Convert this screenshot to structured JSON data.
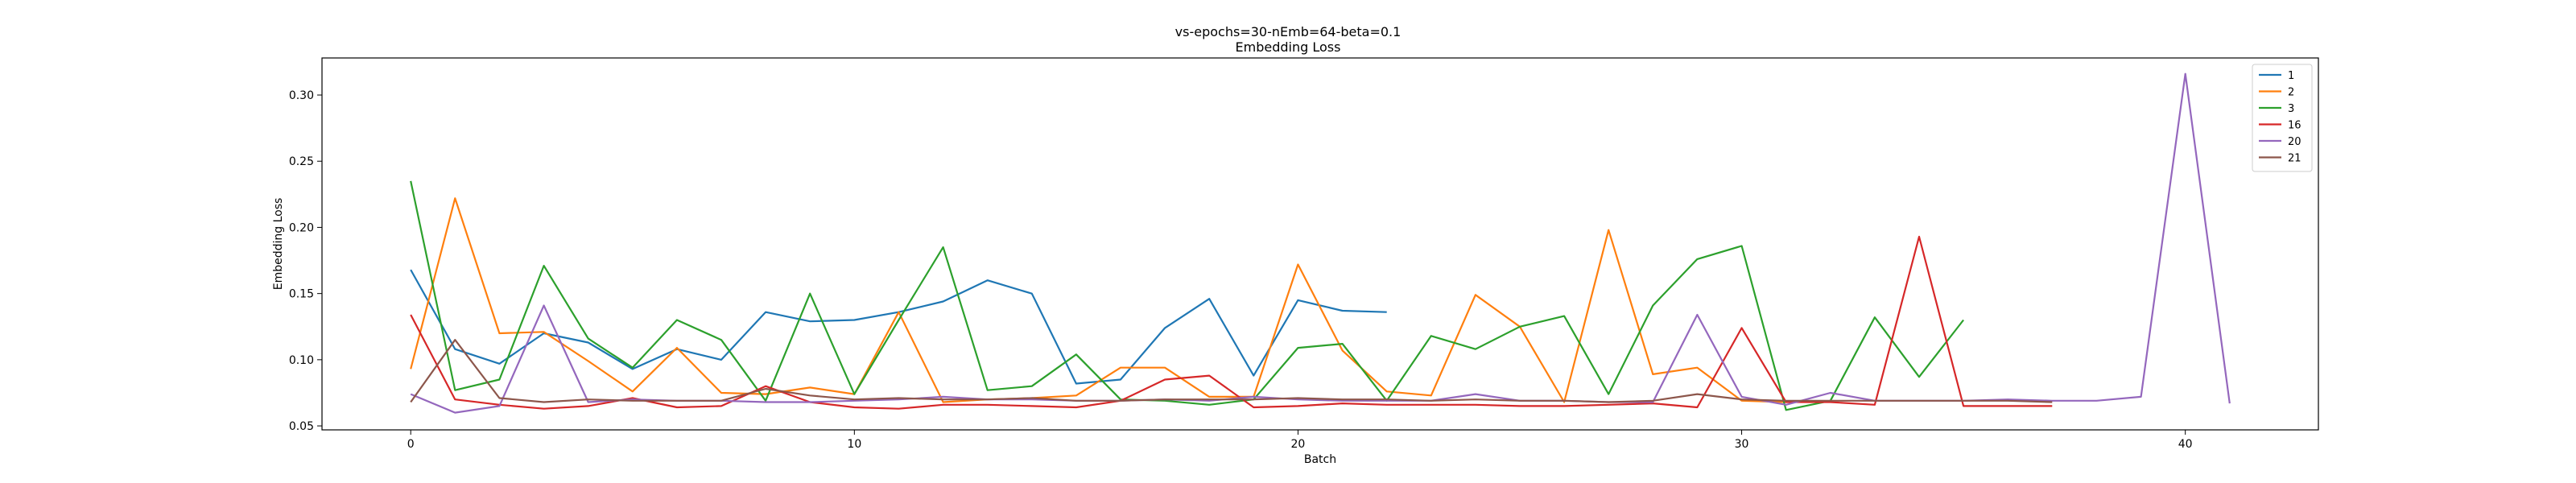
{
  "chart_data": {
    "type": "line",
    "title": "vs-epochs=30-nEmb=64-beta=0.1",
    "subtitle": "Embedding Loss",
    "xlabel": "Batch",
    "ylabel": "Embedding Loss",
    "xlim": [
      -2,
      43
    ],
    "ylim": [
      0.047,
      0.328
    ],
    "xticks": [
      0,
      10,
      20,
      30,
      40
    ],
    "yticks": [
      0.05,
      0.1,
      0.15,
      0.2,
      0.25,
      0.3
    ],
    "ytick_labels": [
      "0.05",
      "0.10",
      "0.15",
      "0.20",
      "0.25",
      "0.30"
    ],
    "grid": false,
    "legend": "top-right",
    "series": [
      {
        "name": "1",
        "color": "#1f77b4",
        "values": [
          0.168,
          0.108,
          0.097,
          0.12,
          0.113,
          0.093,
          0.108,
          0.1,
          0.136,
          0.129,
          0.13,
          0.136,
          0.144,
          0.16,
          0.15,
          0.082,
          0.085,
          0.124,
          0.146,
          0.088,
          0.145,
          0.137,
          0.136
        ]
      },
      {
        "name": "2",
        "color": "#ff7f0e",
        "values": [
          0.093,
          0.222,
          0.12,
          0.121,
          0.099,
          0.076,
          0.109,
          0.075,
          0.074,
          0.079,
          0.074,
          0.136,
          0.068,
          0.07,
          0.071,
          0.073,
          0.094,
          0.094,
          0.072,
          0.072,
          0.172,
          0.107,
          0.076,
          0.073,
          0.149,
          0.125,
          0.068,
          0.198,
          0.089,
          0.094,
          0.069,
          0.068
        ]
      },
      {
        "name": "3",
        "color": "#2ca02c",
        "values": [
          0.235,
          0.077,
          0.085,
          0.171,
          0.116,
          0.094,
          0.13,
          0.115,
          0.069,
          0.15,
          0.074,
          0.13,
          0.185,
          0.077,
          0.08,
          0.104,
          0.07,
          0.069,
          0.066,
          0.07,
          0.109,
          0.112,
          0.069,
          0.118,
          0.108,
          0.125,
          0.133,
          0.074,
          0.141,
          0.176,
          0.186,
          0.062,
          0.069,
          0.132,
          0.087,
          0.13
        ]
      },
      {
        "name": "16",
        "color": "#d62728",
        "values": [
          0.134,
          0.07,
          0.066,
          0.063,
          0.065,
          0.071,
          0.064,
          0.065,
          0.08,
          0.068,
          0.064,
          0.063,
          0.066,
          0.066,
          0.065,
          0.064,
          0.069,
          0.085,
          0.088,
          0.064,
          0.065,
          0.067,
          0.066,
          0.066,
          0.066,
          0.065,
          0.065,
          0.066,
          0.067,
          0.064,
          0.124,
          0.068,
          0.068,
          0.066,
          0.193,
          0.065,
          0.065,
          0.065
        ]
      },
      {
        "name": "20",
        "color": "#9467bd",
        "values": [
          0.074,
          0.06,
          0.065,
          0.141,
          0.068,
          0.07,
          0.069,
          0.069,
          0.068,
          0.068,
          0.069,
          0.07,
          0.072,
          0.07,
          0.07,
          0.069,
          0.069,
          0.07,
          0.069,
          0.072,
          0.07,
          0.069,
          0.069,
          0.069,
          0.074,
          0.069,
          0.069,
          0.068,
          0.068,
          0.134,
          0.072,
          0.066,
          0.075,
          0.069,
          0.069,
          0.069,
          0.07,
          0.069,
          0.069,
          0.072,
          0.316,
          0.067
        ]
      },
      {
        "name": "21",
        "color": "#8c564b",
        "values": [
          0.068,
          0.115,
          0.071,
          0.068,
          0.07,
          0.069,
          0.069,
          0.069,
          0.078,
          0.073,
          0.07,
          0.071,
          0.07,
          0.07,
          0.071,
          0.069,
          0.069,
          0.07,
          0.07,
          0.07,
          0.071,
          0.07,
          0.07,
          0.069,
          0.07,
          0.069,
          0.069,
          0.068,
          0.069,
          0.074,
          0.07,
          0.069,
          0.069,
          0.069,
          0.069,
          0.069,
          0.069,
          0.068
        ]
      }
    ]
  }
}
